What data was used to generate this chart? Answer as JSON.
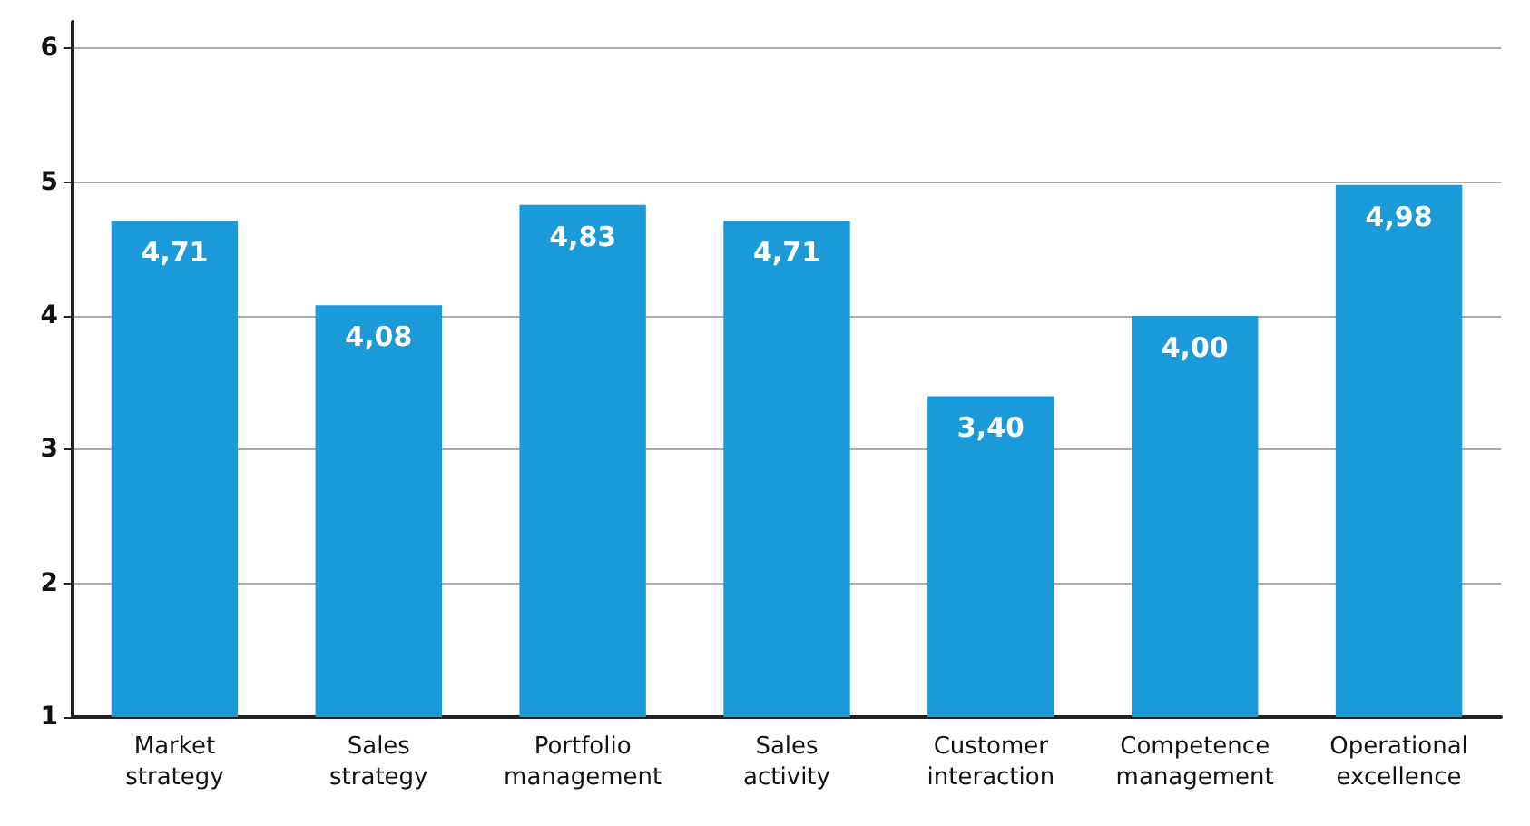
{
  "chart_data": {
    "type": "bar",
    "categories": [
      "Market strategy",
      "Sales strategy",
      "Portfolio management",
      "Sales activity",
      "Customer interaction",
      "Competence management",
      "Operational excellence"
    ],
    "values": [
      4.71,
      4.08,
      4.83,
      4.71,
      3.4,
      4.0,
      4.98
    ],
    "value_labels": [
      "4,71",
      "4,08",
      "4,83",
      "4,71",
      "3,40",
      "4,00",
      "4,98"
    ],
    "color": "#1a9ad8",
    "ylim": [
      1,
      6.2
    ],
    "yticks": [
      1,
      2,
      3,
      4,
      5,
      6
    ],
    "grid": "y"
  }
}
